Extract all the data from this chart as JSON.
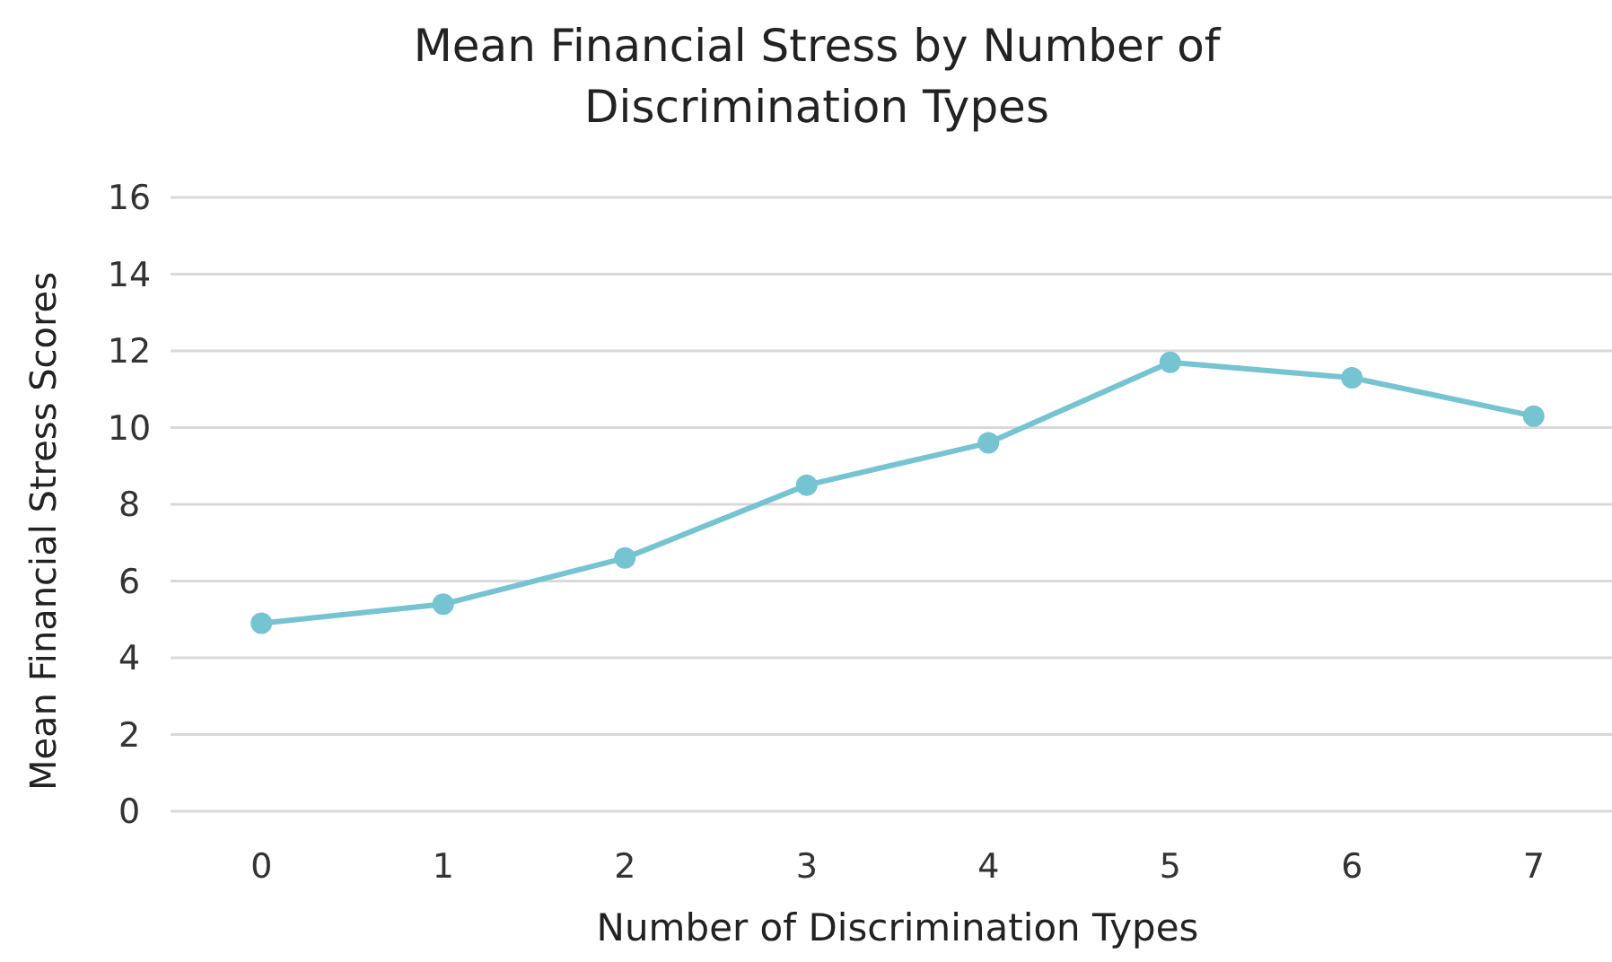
{
  "chart_data": {
    "type": "line",
    "title": "Mean Financial Stress by Number of Discrimination Types",
    "xlabel": "Number of Discrimination Types",
    "ylabel": "Mean Financial Stress Scores",
    "categories": [
      "0",
      "1",
      "2",
      "3",
      "4",
      "5",
      "6",
      "7"
    ],
    "series": [
      {
        "color": "#76c3d2",
        "values": [
          4.9,
          5.4,
          6.6,
          8.5,
          9.6,
          11.7,
          11.3,
          10.3
        ]
      }
    ],
    "ylim": [
      0,
      16
    ],
    "yticks": [
      0,
      2,
      4,
      6,
      8,
      10,
      12,
      14,
      16
    ],
    "grid": "y",
    "marker": "circle"
  }
}
